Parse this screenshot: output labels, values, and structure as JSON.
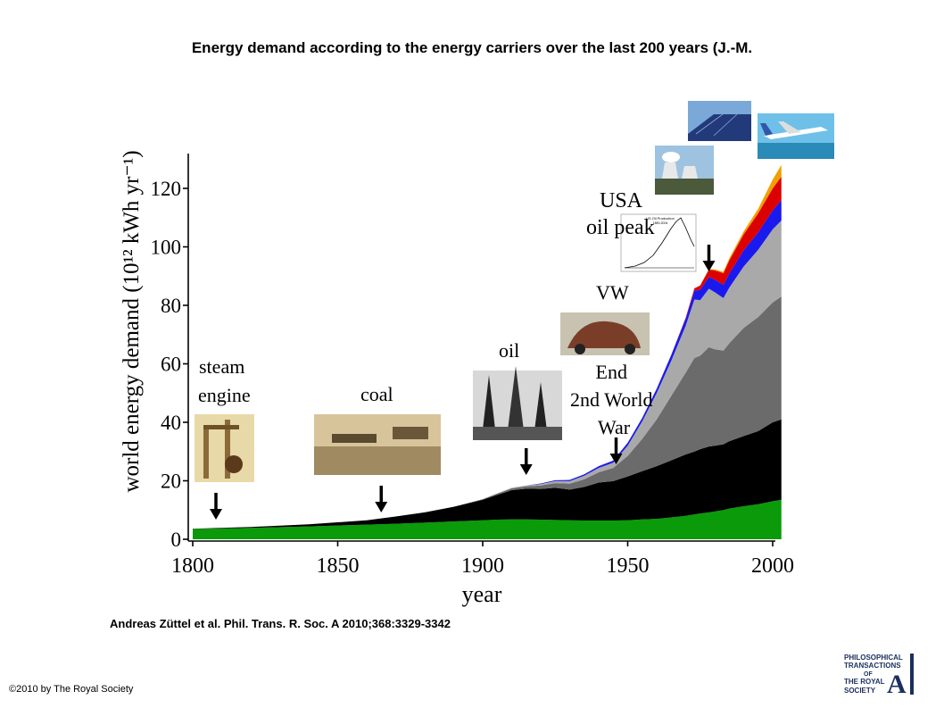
{
  "slide": {
    "title": "Energy demand according to the energy carriers over the last 200 years (J.-M.",
    "citation": "Andreas Züttel et al. Phil. Trans. R. Soc. A 2010;368:3329-3342",
    "copyright": "©2010 by The Royal Society"
  },
  "logo": {
    "lines": [
      "PHILOSOPHICAL",
      "TRANSACTIONS",
      "OF",
      "THE ROYAL",
      "SOCIETY"
    ],
    "letter": "A",
    "colors": {
      "navy": "#1b2f5e"
    }
  },
  "chart_data": {
    "type": "area",
    "stacked": true,
    "xlabel": "year",
    "ylabel": "world energy demand (10¹² kWh yr⁻¹)",
    "xlim": [
      1800,
      2003
    ],
    "ylim": [
      0,
      130
    ],
    "xticks": [
      1800,
      1850,
      1900,
      1950,
      2000
    ],
    "yticks": [
      0,
      20,
      40,
      60,
      80,
      100,
      120
    ],
    "x": [
      1800,
      1820,
      1840,
      1860,
      1870,
      1880,
      1890,
      1900,
      1905,
      1910,
      1915,
      1920,
      1925,
      1930,
      1935,
      1940,
      1945,
      1950,
      1955,
      1960,
      1965,
      1970,
      1973,
      1975,
      1978,
      1980,
      1983,
      1985,
      1990,
      1995,
      2000,
      2003
    ],
    "series": [
      {
        "color": "#0a9a0a",
        "values": [
          3.5,
          3.9,
          4.4,
          5.0,
          5.3,
          5.7,
          6.1,
          6.5,
          6.7,
          6.8,
          6.8,
          6.7,
          6.6,
          6.5,
          6.4,
          6.4,
          6.4,
          6.5,
          6.8,
          7.0,
          7.5,
          8.0,
          8.5,
          8.8,
          9.2,
          9.5,
          10.0,
          10.5,
          11.3,
          12.0,
          13.0,
          13.5
        ]
      },
      {
        "color": "#000000",
        "values": [
          0.1,
          0.3,
          0.7,
          1.5,
          2.5,
          3.5,
          5.0,
          7.0,
          8.5,
          10.0,
          10.5,
          10.5,
          11.0,
          10.5,
          11.5,
          13.0,
          13.5,
          15.0,
          16.5,
          18.0,
          19.5,
          21.0,
          21.5,
          22.0,
          22.5,
          22.5,
          22.5,
          23.0,
          24.0,
          25.0,
          27.0,
          27.5
        ]
      },
      {
        "color": "#6b6b6b",
        "values": [
          0,
          0,
          0,
          0,
          0,
          0,
          0,
          0.2,
          0.4,
          0.6,
          0.8,
          1.2,
          1.6,
          2.0,
          2.6,
          3.5,
          4.5,
          7.0,
          11.0,
          16.0,
          22.0,
          28.0,
          32.0,
          32.0,
          34.0,
          33.0,
          32.0,
          33.5,
          37.0,
          39.0,
          41.0,
          42.0
        ]
      },
      {
        "color": "#a9a9a9",
        "values": [
          0,
          0,
          0,
          0,
          0,
          0,
          0,
          0,
          0.1,
          0.2,
          0.3,
          0.5,
          0.7,
          0.9,
          1.2,
          1.5,
          1.8,
          3.5,
          6.0,
          9.0,
          12.0,
          16.0,
          20.0,
          19.0,
          20.0,
          19.5,
          18.0,
          19.0,
          21.0,
          23.0,
          25.0,
          26.0
        ]
      },
      {
        "color": "#1a1aee",
        "values": [
          0,
          0,
          0,
          0,
          0,
          0,
          0,
          0,
          0,
          0,
          0,
          0.2,
          0.3,
          0.4,
          0.5,
          0.6,
          0.7,
          1.0,
          1.2,
          1.5,
          2.0,
          2.5,
          3.0,
          3.5,
          4.0,
          4.3,
          4.5,
          4.8,
          5.5,
          6.0,
          6.5,
          7.0
        ]
      },
      {
        "color": "#dd0000",
        "values": [
          0,
          0,
          0,
          0,
          0,
          0,
          0,
          0,
          0,
          0,
          0,
          0,
          0,
          0,
          0,
          0,
          0,
          0,
          0,
          0,
          0,
          0.3,
          0.8,
          1.5,
          2.5,
          3.2,
          4.0,
          4.5,
          5.5,
          6.5,
          7.5,
          8.0
        ]
      },
      {
        "color": "#f0a000",
        "values": [
          0,
          0,
          0,
          0,
          0,
          0,
          0,
          0,
          0,
          0,
          0,
          0,
          0,
          0,
          0,
          0,
          0,
          0,
          0,
          0,
          0,
          0,
          0,
          0,
          0.2,
          0.3,
          0.5,
          0.7,
          1.0,
          1.5,
          3.0,
          4.0
        ]
      }
    ],
    "annotations": [
      {
        "text": [
          "steam",
          "engine"
        ],
        "arrow_year": 1808
      },
      {
        "text": [
          "coal"
        ],
        "arrow_year": 1865
      },
      {
        "text": [
          "oil"
        ],
        "arrow_year": 1915
      },
      {
        "text": [
          "End",
          "2nd World",
          "War"
        ],
        "arrow_year": 1946
      },
      {
        "text": [
          "VW"
        ]
      },
      {
        "text": [
          "USA",
          "oil peak"
        ],
        "arrow_year": 1978
      }
    ],
    "inset": {
      "title": "US Oil Production",
      "subtitle": "1859-2004"
    }
  }
}
